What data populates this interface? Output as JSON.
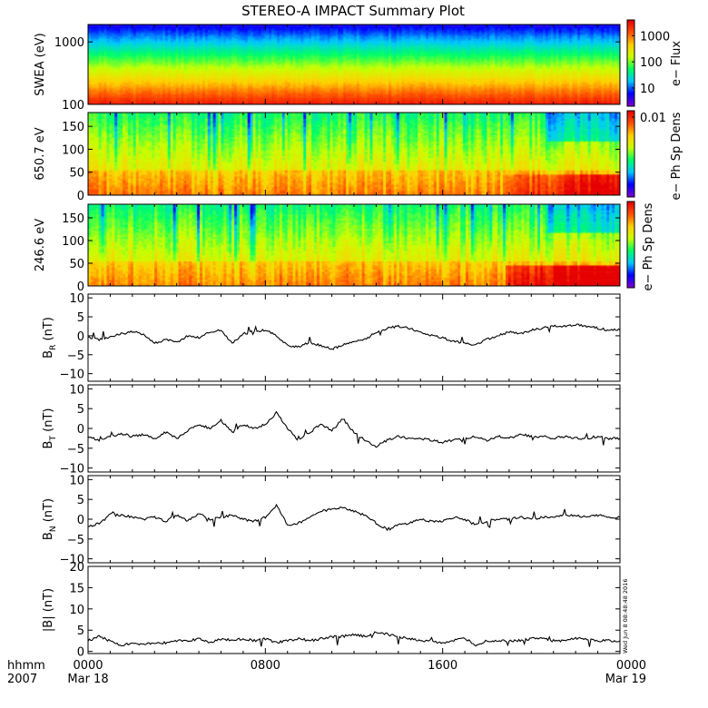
{
  "title": "STEREO-A IMPACT Summary Plot",
  "stamp": "Wed Jun  8 08:48:48 2016",
  "time_axis": {
    "row1": [
      "hhmm",
      "0000",
      "0800",
      "1600",
      "0000"
    ],
    "row2": [
      "2007",
      "Mar 18",
      "Mar 19"
    ],
    "range_hours": [
      0,
      24
    ],
    "major_ticks_hours": [
      0,
      8,
      16,
      24
    ]
  },
  "colors": {
    "colormap": [
      "#7a00d0",
      "#0000ff",
      "#00c8ff",
      "#00ff64",
      "#c8ff00",
      "#ffd000",
      "#ff5000",
      "#e60000"
    ],
    "line": "#000000"
  },
  "chart_data": [
    {
      "type": "heatmap",
      "ylabel": "SWEA (eV)",
      "y_scale": "log",
      "ylim": [
        100,
        1900
      ],
      "yticks": [
        "1000",
        "100"
      ],
      "ytick_values": [
        1000,
        100
      ],
      "colorbar_label": "e− Flux",
      "colorbar_ticks": [
        "1000",
        "100",
        "10"
      ],
      "colorbar_tick_values": [
        1000,
        100,
        10
      ],
      "colorbar_range": [
        2,
        4000
      ],
      "description_values": {
        "energy_eV": [
          100,
          200,
          400,
          700,
          1000,
          1500,
          1900
        ],
        "flux_level": [
          0.95,
          0.85,
          0.62,
          0.5,
          0.38,
          0.18,
          0.1
        ]
      }
    },
    {
      "type": "heatmap",
      "ylabel": "650.7 eV",
      "ylim": [
        0,
        180
      ],
      "yticks": [
        "150",
        "100",
        "50",
        "0"
      ],
      "ytick_values": [
        150,
        100,
        50,
        0
      ],
      "colorbar_label": "e− Ph Sp Dens",
      "colorbar_ticks": [
        "0.01"
      ],
      "colorbar_tick_values": [
        0.01
      ]
    },
    {
      "type": "heatmap",
      "ylabel": "246.6 eV",
      "ylim": [
        0,
        180
      ],
      "yticks": [
        "150",
        "100",
        "50",
        "0"
      ],
      "ytick_values": [
        150,
        100,
        50,
        0
      ],
      "colorbar_label": "e− Ph Sp Dens",
      "colorbar_ticks": [],
      "colorbar_tick_values": []
    },
    {
      "type": "line",
      "ylabel_main": "B",
      "ylabel_sub": "R",
      "ylabel_unit": " (nT)",
      "ylim": [
        -12,
        11
      ],
      "yticks": [
        "10",
        "5",
        "0",
        "−5",
        "−10"
      ],
      "ytick_values": [
        10,
        5,
        0,
        -5,
        -10
      ],
      "x": [
        0,
        0.5,
        1,
        1.5,
        2,
        2.5,
        3,
        3.5,
        4,
        4.5,
        5,
        5.5,
        6,
        6.5,
        7,
        7.5,
        8,
        8.5,
        9,
        9.5,
        10,
        10.5,
        11,
        11.5,
        12,
        12.5,
        13,
        13.5,
        14,
        14.5,
        15,
        15.5,
        16,
        16.5,
        17,
        17.5,
        18,
        18.5,
        19,
        19.5,
        20,
        20.5,
        21,
        21.5,
        22,
        22.5,
        23,
        23.5,
        24
      ],
      "y": [
        -0.5,
        -1,
        -0.3,
        0.5,
        1,
        0.5,
        -2,
        -1,
        -1.8,
        0,
        -0.5,
        1,
        1.5,
        -2,
        0.5,
        1.2,
        1.5,
        0,
        -2.5,
        -3,
        -2,
        -2.5,
        -3.5,
        -2.5,
        -1.5,
        -1,
        1,
        2,
        2.5,
        2,
        1,
        0,
        -0.5,
        -1.5,
        -2,
        -2.5,
        -1,
        0,
        1,
        0.5,
        1.5,
        2,
        2.5,
        2.5,
        3,
        2.5,
        2,
        1.5,
        1.5
      ]
    },
    {
      "type": "line",
      "ylabel_main": "B",
      "ylabel_sub": "T",
      "ylabel_unit": " (nT)",
      "ylim": [
        -11,
        11
      ],
      "yticks": [
        "10",
        "5",
        "0",
        "−5",
        "−10"
      ],
      "ytick_values": [
        10,
        5,
        0,
        -5,
        -10
      ],
      "x": [
        0,
        0.5,
        1,
        1.5,
        2,
        2.5,
        3,
        3.5,
        4,
        4.5,
        5,
        5.5,
        6,
        6.5,
        7,
        7.5,
        8,
        8.5,
        9,
        9.5,
        10,
        10.5,
        11,
        11.5,
        12,
        12.5,
        13,
        13.5,
        14,
        14.5,
        15,
        15.5,
        16,
        16.5,
        17,
        17.5,
        18,
        18.5,
        19,
        19.5,
        20,
        20.5,
        21,
        21.5,
        22,
        22.5,
        23,
        23.5,
        24
      ],
      "y": [
        -2,
        -3,
        -2,
        -1.5,
        -2,
        -1.5,
        -2.5,
        -1,
        -2.5,
        -0.5,
        1,
        0,
        2,
        -1,
        1,
        0,
        1,
        4,
        0,
        -3,
        -1,
        1,
        -0.5,
        2.5,
        -1,
        -3,
        -4.5,
        -3,
        -2,
        -2.5,
        -2.5,
        -3,
        -3.5,
        -3,
        -2.5,
        -2,
        -3,
        -2,
        -2.5,
        -1.5,
        -2,
        -2,
        -2.5,
        -2,
        -2.5,
        -2.5,
        -2,
        -2.5,
        -2.5
      ]
    },
    {
      "type": "line",
      "ylabel_main": "B",
      "ylabel_sub": "N",
      "ylabel_unit": " (nT)",
      "ylim": [
        -11,
        11
      ],
      "yticks": [
        "10",
        "5",
        "0",
        "−5",
        "−10"
      ],
      "ytick_values": [
        10,
        5,
        0,
        -5,
        -10
      ],
      "x": [
        0,
        0.5,
        1,
        1.5,
        2,
        2.5,
        3,
        3.5,
        4,
        4.5,
        5,
        5.5,
        6,
        6.5,
        7,
        7.5,
        8,
        8.5,
        9,
        9.5,
        10,
        10.5,
        11,
        11.5,
        12,
        12.5,
        13,
        13.5,
        14,
        14.5,
        15,
        15.5,
        16,
        16.5,
        17,
        17.5,
        18,
        18.5,
        19,
        19.5,
        20,
        20.5,
        21,
        21.5,
        22,
        22.5,
        23,
        23.5,
        24
      ],
      "y": [
        -2,
        -1,
        1.5,
        1,
        0.5,
        0,
        0.5,
        -0.5,
        1,
        -0.5,
        1.5,
        0,
        0.5,
        1,
        0,
        -0.5,
        0.5,
        3.5,
        -1.5,
        -1,
        0.5,
        2,
        2.5,
        3,
        2,
        1,
        -1,
        -2.5,
        -1.5,
        -1,
        0,
        -0.5,
        -0.5,
        0.5,
        0,
        -1.5,
        -0.5,
        0,
        0,
        0.5,
        0,
        0.5,
        0.5,
        1,
        1,
        0.5,
        1,
        0.5,
        0.5
      ]
    },
    {
      "type": "line",
      "ylabel_main": "|B|",
      "ylabel_sub": "",
      "ylabel_unit": " (nT)",
      "ylim": [
        -0.5,
        20
      ],
      "yticks": [
        "20",
        "15",
        "10",
        "5",
        "0"
      ],
      "ytick_values": [
        20,
        15,
        10,
        5,
        0
      ],
      "x": [
        0,
        0.5,
        1,
        1.5,
        2,
        2.5,
        3,
        3.5,
        4,
        4.5,
        5,
        5.5,
        6,
        6.5,
        7,
        7.5,
        8,
        8.5,
        9,
        9.5,
        10,
        10.5,
        11,
        11.5,
        12,
        12.5,
        13,
        13.5,
        14,
        14.5,
        15,
        15.5,
        16,
        16.5,
        17,
        17.5,
        18,
        18.5,
        19,
        19.5,
        20,
        20.5,
        21,
        21.5,
        22,
        22.5,
        23,
        23.5,
        24
      ],
      "y": [
        2.5,
        3.5,
        2.5,
        1.5,
        2,
        1.5,
        2,
        2,
        2.5,
        2.5,
        3,
        2,
        3,
        2.5,
        3,
        2.5,
        3,
        2,
        2.5,
        3,
        2.5,
        3,
        3.5,
        3.5,
        4,
        3.5,
        4.5,
        4,
        3.5,
        3,
        2.5,
        2.5,
        2,
        2.5,
        3,
        1.5,
        2.5,
        2.5,
        2.5,
        2.5,
        3,
        3,
        2.5,
        2.5,
        3,
        3,
        2.5,
        2.5,
        2.5
      ]
    }
  ]
}
